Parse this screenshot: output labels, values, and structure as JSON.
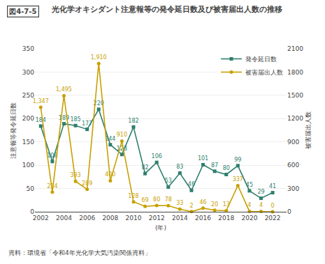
{
  "chart_data": {
    "type": "line",
    "title": "光化学オキシダント注意報等の発令延日数及び被害届出人数の推移",
    "annotations": [
      "図4-7-5",
      "資料：環境省「令和4年光化学大気汚染関係資料」"
    ],
    "xlabel": "(年)",
    "ylabel": "注意報等発令延日数",
    "y2label": "被害届出人数",
    "x": [
      2002,
      2003,
      2004,
      2005,
      2006,
      2007,
      2008,
      2009,
      2010,
      2011,
      2012,
      2013,
      2014,
      2015,
      2016,
      2017,
      2018,
      2019,
      2020,
      2021,
      2022
    ],
    "xlim": [
      2001.5,
      2023.2
    ],
    "xticks": [
      2002,
      2004,
      2006,
      2008,
      2010,
      2012,
      2014,
      2016,
      2018,
      2020,
      2022
    ],
    "ylim": [
      0,
      350
    ],
    "yticks": [
      0,
      50,
      100,
      150,
      200,
      250,
      300,
      350
    ],
    "y2lim": [
      0,
      2100
    ],
    "y2ticks": [
      0,
      300,
      600,
      900,
      1200,
      1500,
      1800,
      2100
    ],
    "grid": true,
    "legend": "upper right",
    "data_labels": true,
    "series": [
      {
        "name": "発令延日数",
        "color": "#2e7f6e",
        "marker": "square",
        "values": [
          184,
          108,
          189,
          185,
          177,
          220,
          144,
          123,
          182,
          82,
          106,
          53,
          83,
          46,
          101,
          87,
          80,
          99,
          45,
          29,
          41
        ]
      },
      {
        "name": "被害届出人数",
        "color": "#c8a000",
        "marker": "circle",
        "axis": "y2",
        "values": [
          1347,
          254,
          1495,
          393,
          289,
          1910,
          400,
          910,
          128,
          69,
          80,
          78,
          33,
          2,
          46,
          20,
          13,
          337,
          4,
          4,
          0
        ],
        "value_labels": [
          "1,347",
          "254",
          "1,495",
          "393",
          "289",
          "1,910",
          "400",
          "910",
          "128",
          "69",
          "80",
          "78",
          "33",
          "2",
          "46",
          "20",
          "13",
          "337",
          "4",
          "4",
          "0"
        ]
      }
    ]
  }
}
